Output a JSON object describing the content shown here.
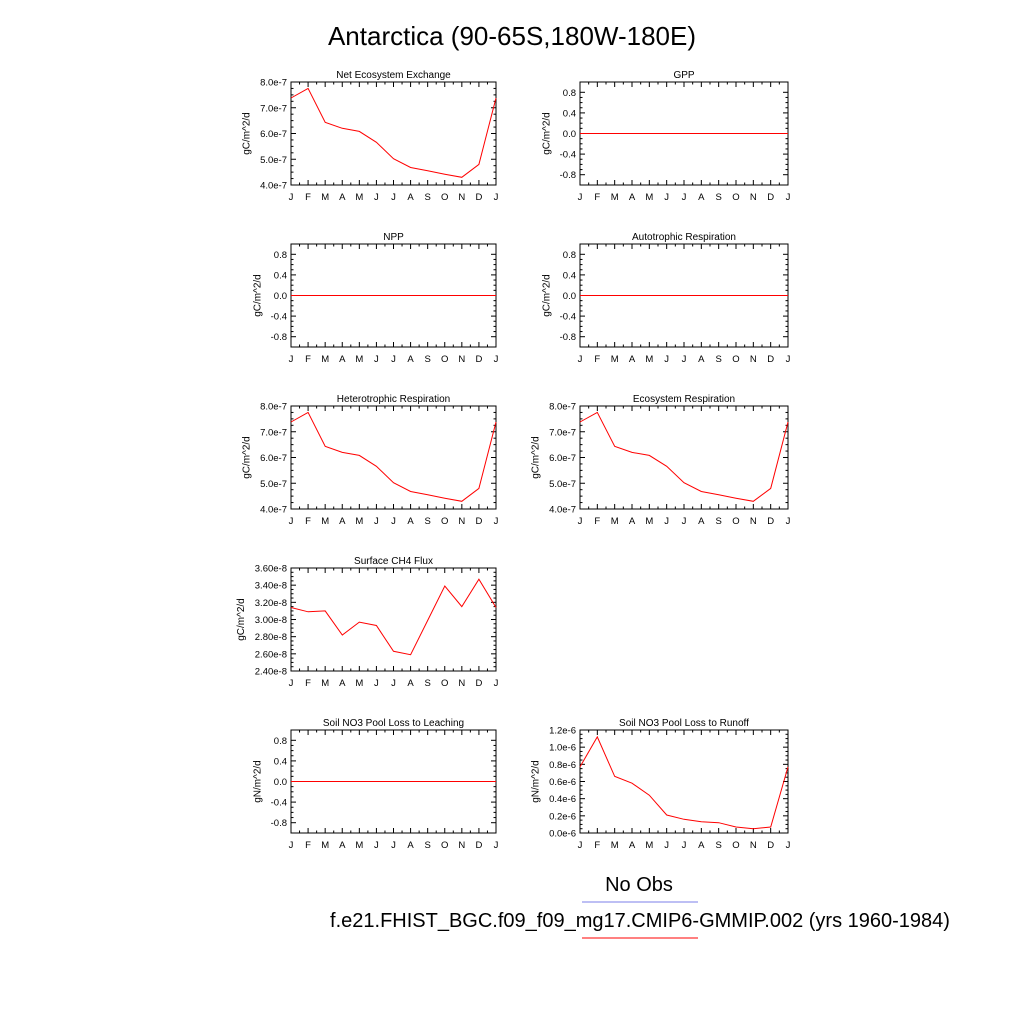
{
  "figure": {
    "title": "Antarctica (90-65S,180W-180E)",
    "legend": [
      {
        "label": "No Obs",
        "color": "#7b7fe8"
      },
      {
        "label": "f.e21.FHIST_BGC.f09_f09_mg17.CMIP6-GMMIP.002 (yrs 1960-1984)",
        "color": "#ff0000"
      }
    ]
  },
  "chart_data": [
    {
      "type": "line",
      "title": "Net Ecosystem Exchange",
      "ylabel": "gC/m^2/d",
      "categories": [
        "J",
        "F",
        "M",
        "A",
        "M",
        "J",
        "J",
        "A",
        "S",
        "O",
        "N",
        "D",
        "J"
      ],
      "yticks": [
        "4.0e-7",
        "5.0e-7",
        "6.0e-7",
        "7.0e-7",
        "8.0e-7"
      ],
      "ylim": [
        4e-07,
        8e-07
      ],
      "series": [
        {
          "color": "#ff0000",
          "values": [
            7.38e-07,
            7.75e-07,
            6.43e-07,
            6.2e-07,
            6.08e-07,
            5.66e-07,
            5.02e-07,
            4.68e-07,
            4.55e-07,
            4.42e-07,
            4.3e-07,
            4.8e-07,
            7.38e-07
          ]
        }
      ]
    },
    {
      "type": "line",
      "title": "GPP",
      "ylabel": "gC/m^2/d",
      "categories": [
        "J",
        "F",
        "M",
        "A",
        "M",
        "J",
        "J",
        "A",
        "S",
        "O",
        "N",
        "D",
        "J"
      ],
      "yticks": [
        "-0.8",
        "-0.4",
        "0.0",
        "0.4",
        "0.8"
      ],
      "ylim": [
        -1.0,
        1.0
      ],
      "series": [
        {
          "color": "#ff0000",
          "values": [
            0,
            0,
            0,
            0,
            0,
            0,
            0,
            0,
            0,
            0,
            0,
            0,
            0
          ]
        }
      ]
    },
    {
      "type": "line",
      "title": "NPP",
      "ylabel": "gC/m^2/d",
      "categories": [
        "J",
        "F",
        "M",
        "A",
        "M",
        "J",
        "J",
        "A",
        "S",
        "O",
        "N",
        "D",
        "J"
      ],
      "yticks": [
        "-0.8",
        "-0.4",
        "0.0",
        "0.4",
        "0.8"
      ],
      "ylim": [
        -1.0,
        1.0
      ],
      "series": [
        {
          "color": "#ff0000",
          "values": [
            0,
            0,
            0,
            0,
            0,
            0,
            0,
            0,
            0,
            0,
            0,
            0,
            0
          ]
        }
      ]
    },
    {
      "type": "line",
      "title": "Autotrophic Respiration",
      "ylabel": "gC/m^2/d",
      "categories": [
        "J",
        "F",
        "M",
        "A",
        "M",
        "J",
        "J",
        "A",
        "S",
        "O",
        "N",
        "D",
        "J"
      ],
      "yticks": [
        "-0.8",
        "-0.4",
        "0.0",
        "0.4",
        "0.8"
      ],
      "ylim": [
        -1.0,
        1.0
      ],
      "series": [
        {
          "color": "#ff0000",
          "values": [
            0,
            0,
            0,
            0,
            0,
            0,
            0,
            0,
            0,
            0,
            0,
            0,
            0
          ]
        }
      ]
    },
    {
      "type": "line",
      "title": "Heterotrophic Respiration",
      "ylabel": "gC/m^2/d",
      "categories": [
        "J",
        "F",
        "M",
        "A",
        "M",
        "J",
        "J",
        "A",
        "S",
        "O",
        "N",
        "D",
        "J"
      ],
      "yticks": [
        "4.0e-7",
        "5.0e-7",
        "6.0e-7",
        "7.0e-7",
        "8.0e-7"
      ],
      "ylim": [
        4e-07,
        8e-07
      ],
      "series": [
        {
          "color": "#ff0000",
          "values": [
            7.38e-07,
            7.75e-07,
            6.43e-07,
            6.2e-07,
            6.08e-07,
            5.66e-07,
            5.02e-07,
            4.68e-07,
            4.55e-07,
            4.42e-07,
            4.3e-07,
            4.8e-07,
            7.38e-07
          ]
        }
      ]
    },
    {
      "type": "line",
      "title": "Ecosystem Respiration",
      "ylabel": "gC/m^2/d",
      "categories": [
        "J",
        "F",
        "M",
        "A",
        "M",
        "J",
        "J",
        "A",
        "S",
        "O",
        "N",
        "D",
        "J"
      ],
      "yticks": [
        "4.0e-7",
        "5.0e-7",
        "6.0e-7",
        "7.0e-7",
        "8.0e-7"
      ],
      "ylim": [
        4e-07,
        8e-07
      ],
      "series": [
        {
          "color": "#ff0000",
          "values": [
            7.38e-07,
            7.75e-07,
            6.43e-07,
            6.2e-07,
            6.08e-07,
            5.66e-07,
            5.02e-07,
            4.68e-07,
            4.55e-07,
            4.42e-07,
            4.3e-07,
            4.8e-07,
            7.38e-07
          ]
        }
      ]
    },
    {
      "type": "line",
      "title": "Surface CH4 Flux",
      "ylabel": "gC/m^2/d",
      "categories": [
        "J",
        "F",
        "M",
        "A",
        "M",
        "J",
        "J",
        "A",
        "S",
        "O",
        "N",
        "D",
        "J"
      ],
      "yticks": [
        "2.40e-8",
        "2.60e-8",
        "2.80e-8",
        "3.00e-8",
        "3.20e-8",
        "3.40e-8",
        "3.60e-8"
      ],
      "ylim": [
        2.4e-08,
        3.6e-08
      ],
      "series": [
        {
          "color": "#ff0000",
          "values": [
            3.14e-08,
            3.09e-08,
            3.1e-08,
            2.82e-08,
            2.97e-08,
            2.93e-08,
            2.63e-08,
            2.59e-08,
            2.99e-08,
            3.39e-08,
            3.15e-08,
            3.47e-08,
            3.14e-08
          ]
        }
      ]
    },
    {
      "type": "line",
      "title": "Soil NO3 Pool Loss to Leaching",
      "ylabel": "gN/m^2/d",
      "categories": [
        "J",
        "F",
        "M",
        "A",
        "M",
        "J",
        "J",
        "A",
        "S",
        "O",
        "N",
        "D",
        "J"
      ],
      "yticks": [
        "-0.8",
        "-0.4",
        "0.0",
        "0.4",
        "0.8"
      ],
      "ylim": [
        -1.0,
        1.0
      ],
      "series": [
        {
          "color": "#ff0000",
          "values": [
            0,
            0,
            0,
            0,
            0,
            0,
            0,
            0,
            0,
            0,
            0,
            0,
            0
          ]
        }
      ]
    },
    {
      "type": "line",
      "title": "Soil NO3 Pool Loss to Runoff",
      "ylabel": "gN/m^2/d",
      "categories": [
        "J",
        "F",
        "M",
        "A",
        "M",
        "J",
        "J",
        "A",
        "S",
        "O",
        "N",
        "D",
        "J"
      ],
      "yticks": [
        "0.0e-6",
        "0.2e-6",
        "0.4e-6",
        "0.6e-6",
        "0.8e-6",
        "1.0e-6",
        "1.2e-6"
      ],
      "ylim": [
        0.0,
        1.2e-06
      ],
      "series": [
        {
          "color": "#ff0000",
          "values": [
            7.7e-07,
            1.12e-06,
            6.6e-07,
            5.8e-07,
            4.4e-07,
            2.1e-07,
            1.6e-07,
            1.3e-07,
            1.2e-07,
            7e-08,
            5e-08,
            7e-08,
            7.7e-07
          ]
        }
      ]
    }
  ]
}
